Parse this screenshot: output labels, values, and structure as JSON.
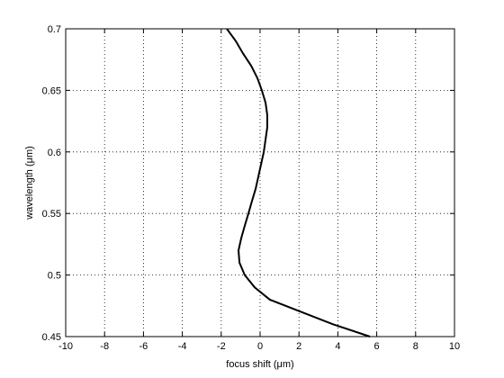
{
  "chart_data": {
    "type": "line",
    "xlabel": "focus shift (μm)",
    "ylabel": "wavelength (μm)",
    "x": [
      5.65,
      3.75,
      2.13,
      0.5,
      -0.28,
      -0.79,
      -1.06,
      -1.11,
      -0.97,
      -0.79,
      -0.6,
      -0.42,
      -0.23,
      -0.09,
      0.05,
      0.19,
      0.28,
      0.37,
      0.37,
      0.28,
      0.09,
      -0.14,
      -0.46,
      -0.88,
      -1.25,
      -1.71
    ],
    "values": [
      0.45,
      0.46,
      0.47,
      0.48,
      0.49,
      0.5,
      0.51,
      0.52,
      0.53,
      0.54,
      0.55,
      0.56,
      0.57,
      0.58,
      0.59,
      0.6,
      0.61,
      0.62,
      0.63,
      0.64,
      0.65,
      0.66,
      0.67,
      0.68,
      0.69,
      0.7
    ],
    "color": "#000000",
    "xlim": [
      -10,
      10
    ],
    "xticks": [
      -10,
      -8,
      -6,
      -4,
      -2,
      0,
      2,
      4,
      6,
      8,
      10
    ],
    "ylim": [
      0.45,
      0.7
    ],
    "yticks": [
      0.45,
      0.5,
      0.55,
      0.6,
      0.65,
      0.7
    ],
    "grid": true
  }
}
